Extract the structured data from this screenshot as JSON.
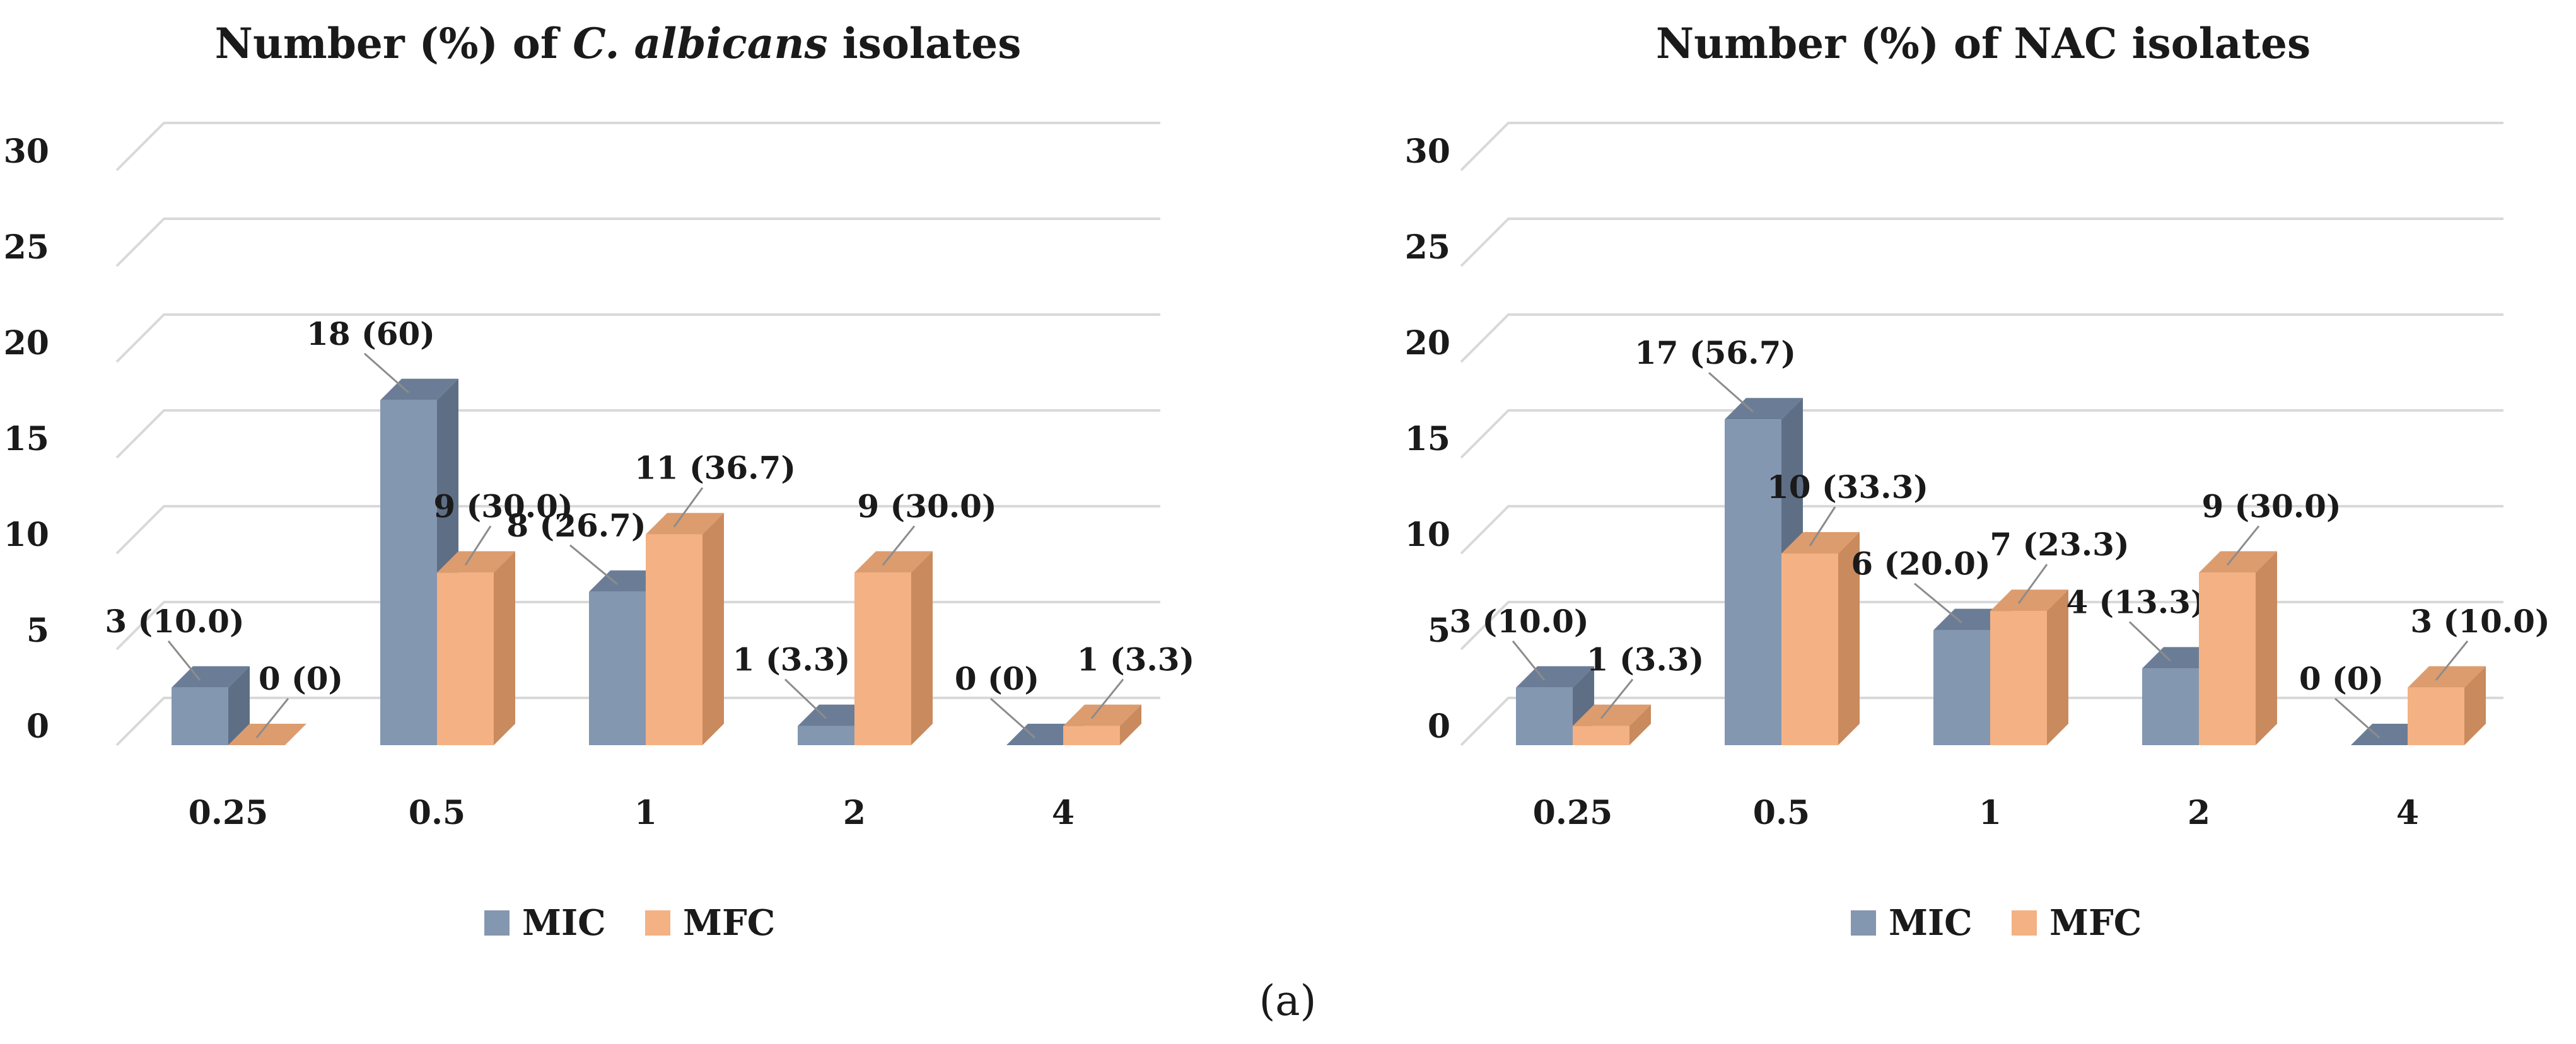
{
  "figure_label": "(a)",
  "colors": {
    "mic_front": "#8497b0",
    "mic_side": "#5e6f85",
    "mic_top": "#6b7d96",
    "mfc_front": "#f4b183",
    "mfc_side": "#c98a5d",
    "mfc_top": "#dd9c6e"
  },
  "chart_data": [
    {
      "type": "bar",
      "title_prefix": "Number (%) of ",
      "title_italic": "C. albicans",
      "title_suffix": " isolates",
      "categories": [
        "0.25",
        "0.5",
        "1",
        "2",
        "4"
      ],
      "ylim": [
        0,
        30
      ],
      "yticks": [
        "0",
        "5",
        "10",
        "15",
        "20",
        "25",
        "30"
      ],
      "series": [
        {
          "name": "MIC",
          "values": [
            3,
            18,
            8,
            1,
            0
          ],
          "labels": [
            "3 (10.0)",
            "18 (60)",
            "8 (26.7)",
            "1 (3.3)",
            "0 (0)"
          ]
        },
        {
          "name": "MFC",
          "values": [
            0,
            9,
            11,
            9,
            1
          ],
          "labels": [
            "0 (0)",
            "9 (30.0)",
            "11 (36.7)",
            "9 (30.0)",
            "1 (3.3)"
          ]
        }
      ],
      "legend": [
        "MIC",
        "MFC"
      ],
      "legend_position": "bottom"
    },
    {
      "type": "bar",
      "title_prefix": "Number (%) of NAC isolates",
      "title_italic": "",
      "title_suffix": "",
      "categories": [
        "0.25",
        "0.5",
        "1",
        "2",
        "4"
      ],
      "ylim": [
        0,
        30
      ],
      "yticks": [
        "0",
        "5",
        "10",
        "15",
        "20",
        "25",
        "30"
      ],
      "series": [
        {
          "name": "MIC",
          "values": [
            3,
            17,
            6,
            4,
            0
          ],
          "labels": [
            "3 (10.0)",
            "17 (56.7)",
            "6 (20.0)",
            "4 (13.3)",
            "0 (0)"
          ]
        },
        {
          "name": "MFC",
          "values": [
            1,
            10,
            7,
            9,
            3
          ],
          "labels": [
            "1 (3.3)",
            "10 (33.3)",
            "7 (23.3)",
            "9 (30.0)",
            "3 (10.0)"
          ]
        }
      ],
      "legend": [
        "MIC",
        "MFC"
      ],
      "legend_position": "bottom"
    }
  ]
}
